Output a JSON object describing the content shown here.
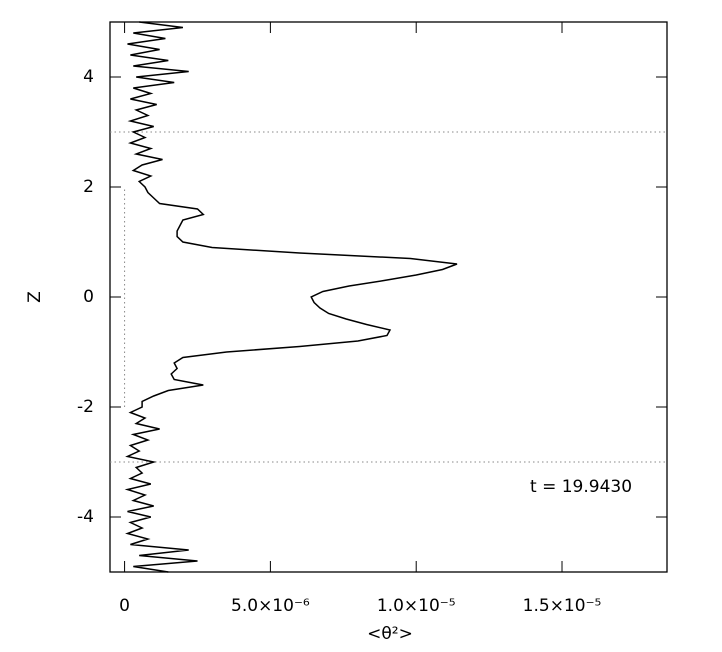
{
  "chart_data": {
    "type": "line",
    "xlabel": "<θ²>",
    "ylabel": "Z",
    "annotation": "t = 19.9430",
    "xlim": [
      -5e-07,
      1.86e-05
    ],
    "ylim": [
      -5,
      5
    ],
    "xticks": [
      0,
      {
        "value": 5e-06,
        "label": "5.0×10⁻⁶"
      },
      {
        "value": 1e-05,
        "label": "1.0×10⁻⁵"
      },
      {
        "value": 1.5e-05,
        "label": "1.5×10⁻⁵"
      }
    ],
    "yticks": [
      -4,
      -2,
      0,
      2,
      4
    ],
    "ref_lines_z": [
      -3,
      3
    ],
    "zero_line": {
      "x": 0,
      "z_range": [
        -2,
        2
      ]
    },
    "series": [
      {
        "color": "#000000",
        "z": [
          -5,
          -4.9,
          -4.8,
          -4.7,
          -4.6,
          -4.5,
          -4.4,
          -4.3,
          -4.2,
          -4.1,
          -4,
          -3.9,
          -3.8,
          -3.7,
          -3.6,
          -3.5,
          -3.4,
          -3.3,
          -3.2,
          -3.1,
          -3,
          -2.9,
          -2.8,
          -2.7,
          -2.6,
          -2.5,
          -2.4,
          -2.3,
          -2.2,
          -2.1,
          -2,
          -1.9,
          -1.8,
          -1.7,
          -1.6,
          -1.5,
          -1.4,
          -1.3,
          -1.2,
          -1.1,
          -1,
          -0.9,
          -0.8,
          -0.7,
          -0.6,
          -0.5,
          -0.4,
          -0.3,
          -0.2,
          -0.1,
          0,
          0.1,
          0.2,
          0.3,
          0.4,
          0.5,
          0.6,
          0.7,
          0.8,
          0.9,
          1,
          1.1,
          1.2,
          1.3,
          1.4,
          1.5,
          1.6,
          1.7,
          1.8,
          1.9,
          2,
          2.1,
          2.2,
          2.3,
          2.4,
          2.5,
          2.6,
          2.7,
          2.8,
          2.9,
          3,
          3.1,
          3.2,
          3.3,
          3.4,
          3.5,
          3.6,
          3.7,
          3.8,
          3.9,
          4,
          4.1,
          4.2,
          4.3,
          4.4,
          4.5,
          4.6,
          4.7,
          4.8,
          4.9,
          5
        ],
        "values": [
          1.5e-06,
          3e-07,
          2.5e-06,
          5e-07,
          2.2e-06,
          2e-07,
          8e-07,
          1e-07,
          6e-07,
          2e-07,
          9e-07,
          1e-07,
          1e-06,
          3e-07,
          7e-07,
          1e-07,
          9e-07,
          2e-07,
          6e-07,
          4e-07,
          1e-06,
          1e-07,
          5e-07,
          2e-07,
          8e-07,
          3e-07,
          1.2e-06,
          4e-07,
          7e-07,
          2e-07,
          6e-07,
          6e-07,
          1e-06,
          1.5e-06,
          2.7e-06,
          1.7e-06,
          1.6e-06,
          1.8e-06,
          1.7e-06,
          2e-06,
          3.5e-06,
          6e-06,
          8e-06,
          9e-06,
          9.1e-06,
          8.3e-06,
          7.6e-06,
          7e-06,
          6.7e-06,
          6.5e-06,
          6.4e-06,
          6.8e-06,
          7.7e-06,
          8.9e-06,
          1e-05,
          1.09e-05,
          1.14e-05,
          9.8e-06,
          6e-06,
          3e-06,
          2e-06,
          1.8e-06,
          1.8e-06,
          1.9e-06,
          2e-06,
          2.7e-06,
          2.5e-06,
          1.2e-06,
          1e-06,
          8e-07,
          7e-07,
          5e-07,
          9e-07,
          3e-07,
          6e-07,
          1.3e-06,
          4e-07,
          9e-07,
          2e-07,
          7e-07,
          3e-07,
          1e-06,
          2e-07,
          8e-07,
          4e-07,
          1.1e-06,
          2e-07,
          9e-07,
          3e-07,
          1.7e-06,
          4e-07,
          2.2e-06,
          3e-07,
          1.5e-06,
          2e-07,
          1.2e-06,
          1e-07,
          1.4e-06,
          3e-07,
          2e-06,
          5e-07
        ]
      }
    ]
  }
}
